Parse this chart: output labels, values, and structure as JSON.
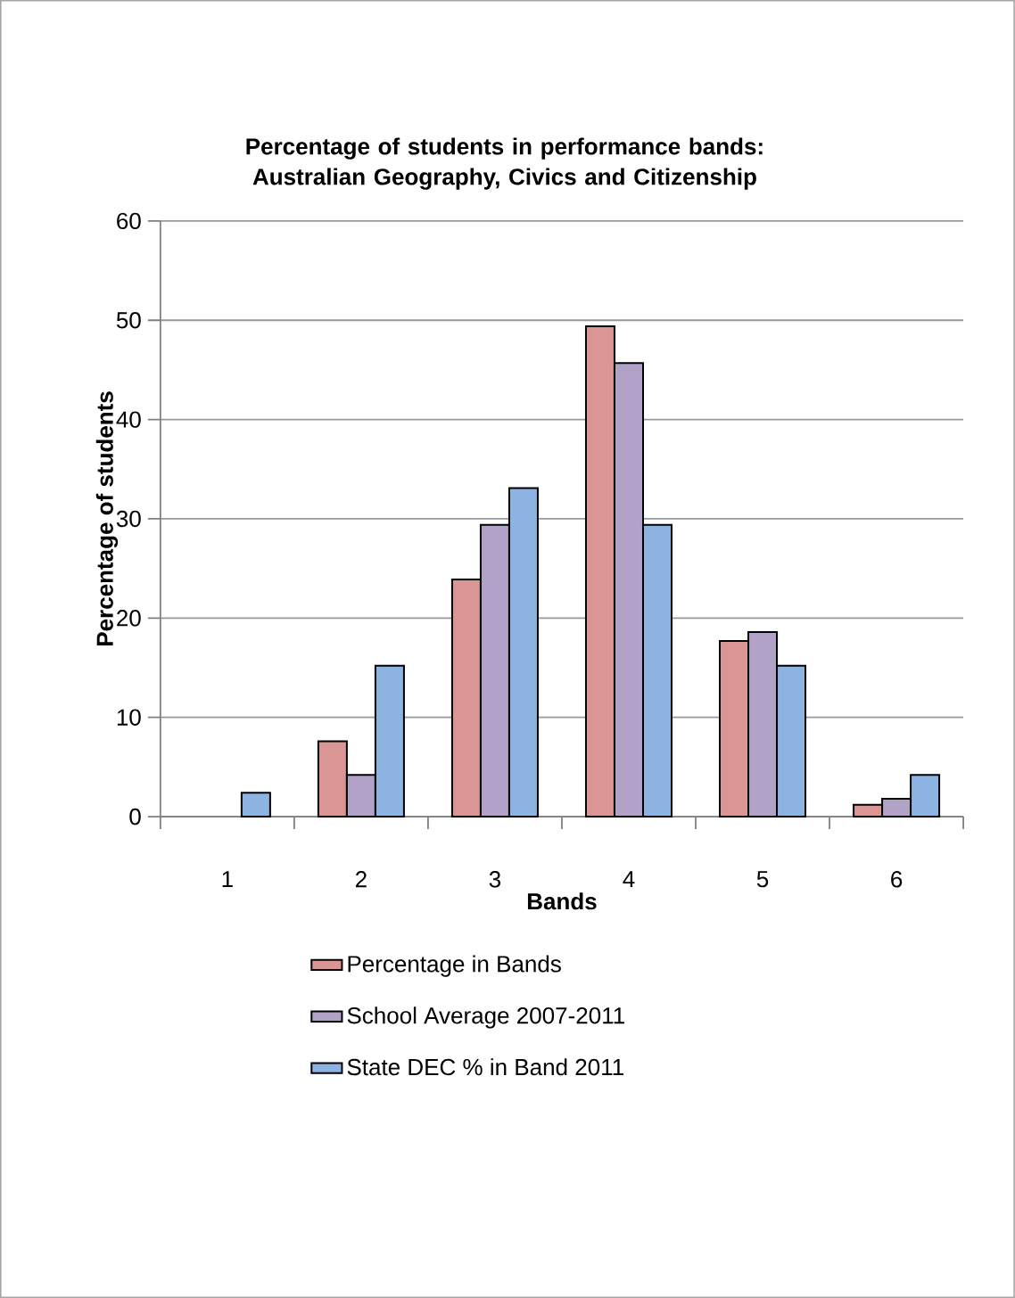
{
  "chart_data": {
    "type": "bar",
    "title": "Percentage of students in performance bands: Australian Geography, Civics and Citizenship",
    "xlabel": "Bands",
    "ylabel": "Percentage of students",
    "categories": [
      "1",
      "2",
      "3",
      "4",
      "5",
      "6"
    ],
    "series": [
      {
        "name": "Percentage in Bands",
        "color": "#d99694",
        "values": [
          null,
          7.6,
          23.9,
          49.4,
          17.7,
          1.2
        ]
      },
      {
        "name": "School Average 2007-2011",
        "color": "#b3a2c7",
        "values": [
          null,
          4.2,
          29.4,
          45.7,
          18.6,
          1.8
        ]
      },
      {
        "name": "State DEC % in Band 2011",
        "color": "#8db3e2",
        "values": [
          2.4,
          15.2,
          33.1,
          29.4,
          15.2,
          4.2
        ]
      }
    ],
    "ylim": [
      0,
      60
    ],
    "yticks": [
      0,
      10,
      20,
      30,
      40,
      50,
      60
    ],
    "grid": "y",
    "legend": "bottom"
  }
}
